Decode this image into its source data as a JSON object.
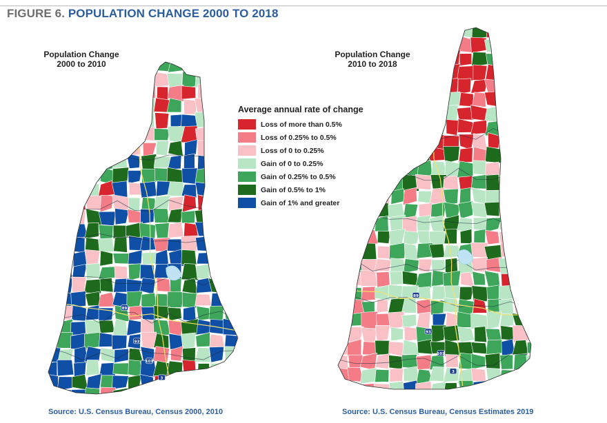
{
  "figure": {
    "prefix": "FIGURE 6.",
    "title": "POPULATION CHANGE 2000 TO 2018"
  },
  "maps": [
    {
      "title_line1": "Population Change",
      "title_line2": "2000 to 2010",
      "source": "Source: U.S. Census Bureau, Census 2000, 2010"
    },
    {
      "title_line1": "Population Change",
      "title_line2": "2010 to 2018",
      "source": "Source: U.S. Census Bureau, Census Estimates 2019"
    }
  ],
  "legend": {
    "heading": "Average annual rate of change",
    "items": [
      {
        "label": "Loss of more than 0.5%",
        "color": "#d7252d"
      },
      {
        "label": "Loss of 0.25% to 0.5%",
        "color": "#f47c86"
      },
      {
        "label": "Loss of 0 to 0.25%",
        "color": "#f9c0c6"
      },
      {
        "label": "Gain of 0 to 0.25%",
        "color": "#b8e6c4"
      },
      {
        "label": "Gain of 0.25% to 0.5%",
        "color": "#3da65a"
      },
      {
        "label": "Gain of 0.5% to 1%",
        "color": "#1e6b1e"
      },
      {
        "label": "Gain of 1% and greater",
        "color": "#0f4fa6"
      }
    ]
  },
  "highway_labels": [
    "89",
    "93",
    "101",
    "3"
  ]
}
